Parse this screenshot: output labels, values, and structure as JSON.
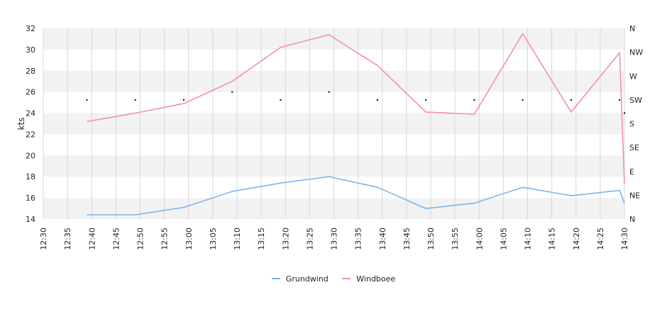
{
  "chart_data": {
    "type": "line",
    "ylabel": "kts",
    "ylim": [
      14,
      32
    ],
    "y_ticks": [
      "14",
      "16",
      "18",
      "20",
      "22",
      "24",
      "26",
      "28",
      "30",
      "32"
    ],
    "x_ticks": [
      "12:30",
      "12:35",
      "12:40",
      "12:45",
      "12:50",
      "12:55",
      "13:00",
      "13:05",
      "13:10",
      "13:15",
      "13:20",
      "13:25",
      "13:30",
      "13:35",
      "13:40",
      "13:45",
      "13:50",
      "13:55",
      "14:00",
      "14:05",
      "14:10",
      "14:15",
      "14:20",
      "14:25",
      "14:30"
    ],
    "xlim": [
      "12:30",
      "14:30"
    ],
    "direction_axis": {
      "labels": [
        "N",
        "NE",
        "E",
        "SE",
        "S",
        "SW",
        "W",
        "NW",
        "N"
      ],
      "range": [
        0,
        360
      ]
    },
    "series": [
      {
        "name": "Grundwind",
        "color": "#7cb5ec",
        "x": [
          "12:39",
          "12:49",
          "12:59",
          "13:09",
          "13:19",
          "13:29",
          "13:39",
          "13:49",
          "13:59",
          "14:09",
          "14:19",
          "14:29",
          "14:30"
        ],
        "values": [
          14.4,
          14.4,
          15.1,
          16.6,
          17.4,
          18.0,
          17.0,
          15.0,
          15.5,
          17.0,
          16.2,
          16.7,
          15.5
        ]
      },
      {
        "name": "Windboee",
        "color": "#f38cc0",
        "x": [
          "12:39",
          "12:49",
          "12:59",
          "13:09",
          "13:19",
          "13:29",
          "13:39",
          "13:49",
          "13:59",
          "14:09",
          "14:19",
          "14:29",
          "14:30"
        ],
        "values": [
          23.2,
          24.0,
          24.9,
          27.0,
          30.2,
          31.4,
          28.5,
          24.1,
          23.9,
          31.5,
          24.1,
          29.7,
          17.3
        ]
      }
    ],
    "wind_direction": {
      "x": [
        "12:39",
        "12:49",
        "12:59",
        "13:09",
        "13:19",
        "13:29",
        "13:39",
        "13:49",
        "13:59",
        "14:09",
        "14:19",
        "14:29",
        "14:30"
      ],
      "degrees": [
        225,
        225,
        225,
        240,
        225,
        240,
        225,
        225,
        225,
        225,
        225,
        225,
        200
      ]
    },
    "grid": true,
    "legend": "bottom-center"
  }
}
